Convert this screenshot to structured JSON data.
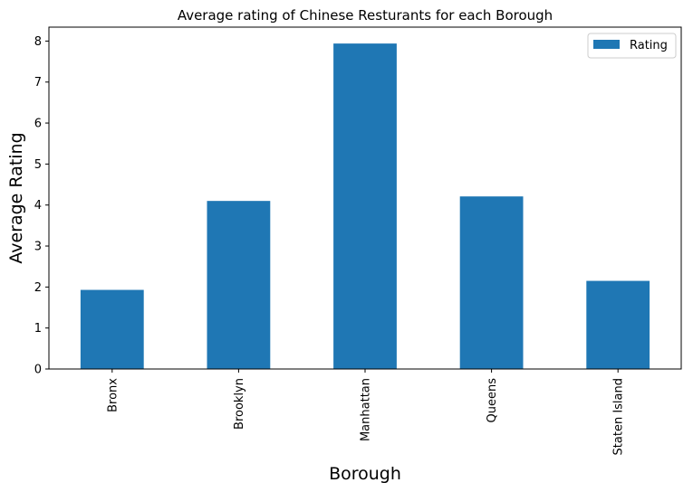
{
  "chart_data": {
    "type": "bar",
    "title": "Average rating of Chinese Resturants for each Borough",
    "xlabel": "Borough",
    "ylabel": "Average Rating",
    "categories": [
      "Bronx",
      "Brooklyn",
      "Manhattan",
      "Queens",
      "Staten Island"
    ],
    "series": [
      {
        "name": "Rating",
        "values": [
          1.93,
          4.1,
          7.94,
          4.21,
          2.15
        ],
        "color": "#1f77b4"
      }
    ],
    "ylim": [
      0,
      8.34
    ],
    "yticks": [
      0,
      1,
      2,
      3,
      4,
      5,
      6,
      7,
      8
    ],
    "ytick_labels": [
      "0",
      "1",
      "2",
      "3",
      "4",
      "5",
      "6",
      "7",
      "8"
    ],
    "grid": false,
    "legend_position": "top-right",
    "x_tick_rotation": "vertical"
  }
}
